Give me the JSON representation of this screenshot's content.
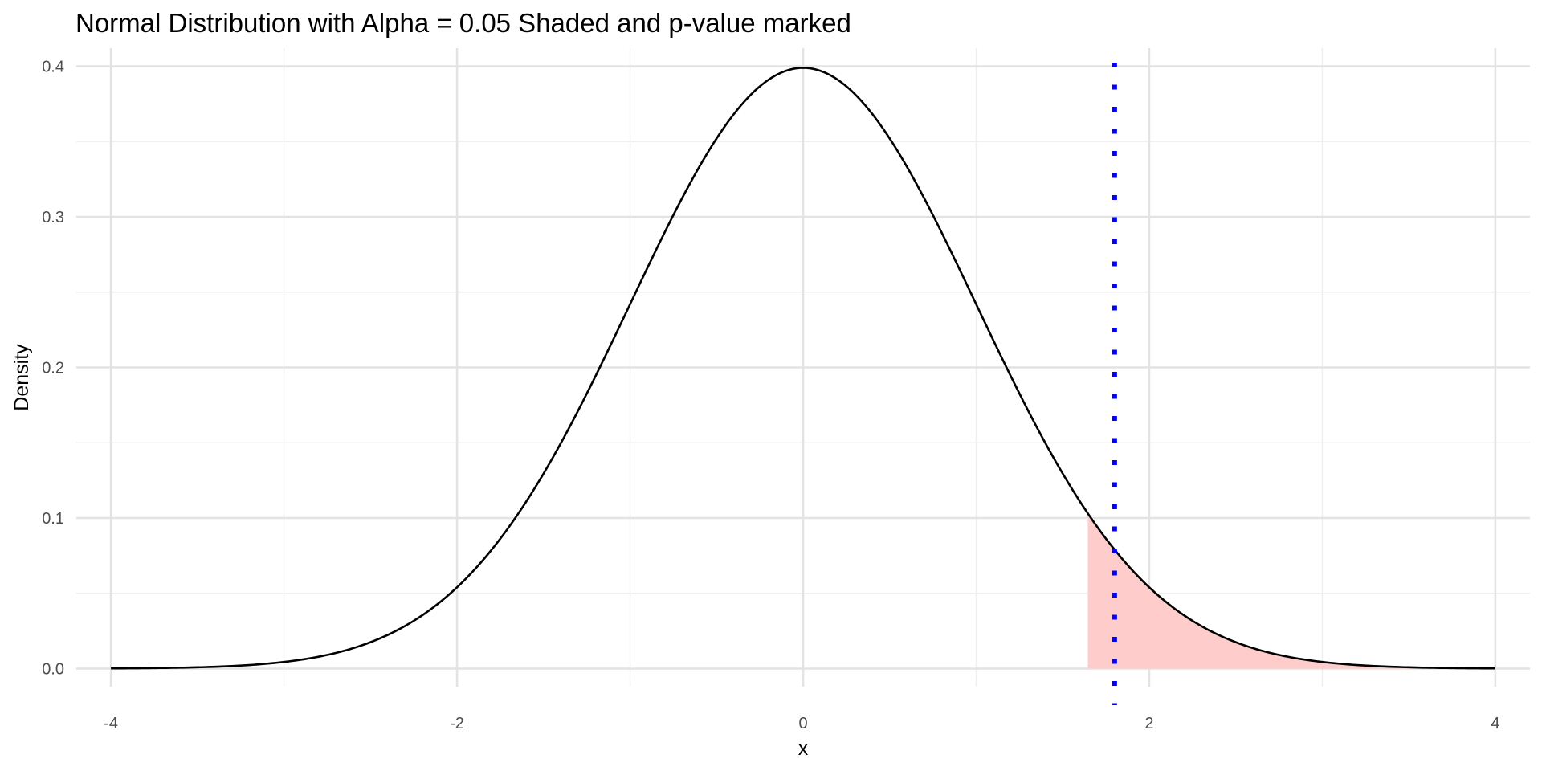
{
  "chart_data": {
    "type": "line",
    "title": "Normal Distribution with Alpha = 0.05 Shaded and p-value marked",
    "xlabel": "x",
    "ylabel": "Density",
    "xlim": [
      -4.2,
      4.2
    ],
    "ylim": [
      -0.012,
      0.412
    ],
    "x_ticks": [
      -4,
      -2,
      0,
      2,
      4
    ],
    "y_ticks": [
      0.0,
      0.1,
      0.2,
      0.3,
      0.4
    ],
    "x_tick_labels": [
      "-4",
      "-2",
      "0",
      "2",
      "4"
    ],
    "y_tick_labels": [
      "0.0",
      "0.1",
      "0.2",
      "0.3",
      "0.4"
    ],
    "grid": true,
    "legend": "none",
    "series": [
      {
        "distribution": "standard normal",
        "mean": 0,
        "sd": 1,
        "x_range": [
          -4,
          4
        ],
        "color": "#000000"
      }
    ],
    "shaded_region": {
      "x_from": 1.645,
      "x_to": 4,
      "alpha": 0.05,
      "color": "#ffcccc"
    },
    "p_value_line": {
      "x": 1.8,
      "color": "#0000ff",
      "style": "dotted"
    }
  }
}
